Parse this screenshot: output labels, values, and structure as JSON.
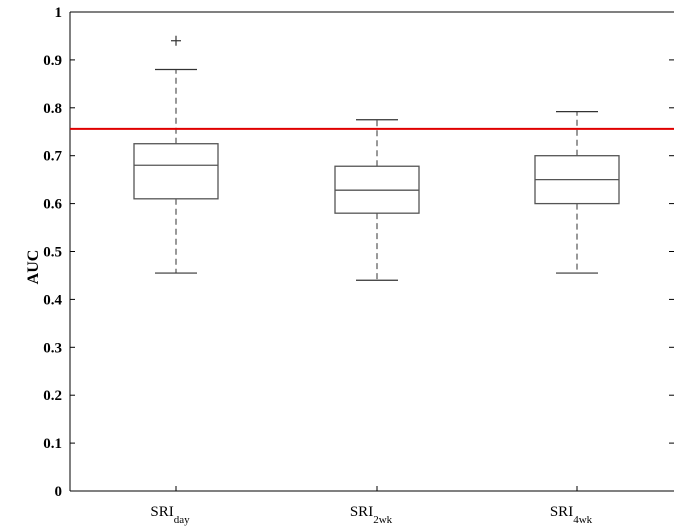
{
  "chart_data": {
    "type": "boxplot",
    "ylabel": "AUC",
    "ylim": [
      0,
      1
    ],
    "yticks": [
      "0",
      "0.1",
      "0.2",
      "0.3",
      "0.4",
      "0.5",
      "0.6",
      "0.7",
      "0.8",
      "0.9",
      "1"
    ],
    "categories": [
      {
        "base": "SRI",
        "sub": "day"
      },
      {
        "base": "SRI",
        "sub": "2wk"
      },
      {
        "base": "SRI",
        "sub": "4wk"
      }
    ],
    "boxes": [
      {
        "whisker_low": 0.455,
        "q1": 0.61,
        "median": 0.68,
        "q3": 0.725,
        "whisker_high": 0.88,
        "outliers": [
          0.94
        ]
      },
      {
        "whisker_low": 0.44,
        "q1": 0.58,
        "median": 0.628,
        "q3": 0.678,
        "whisker_high": 0.775,
        "outliers": []
      },
      {
        "whisker_low": 0.455,
        "q1": 0.6,
        "median": 0.65,
        "q3": 0.7,
        "whisker_high": 0.792,
        "outliers": []
      }
    ],
    "reference_line": {
      "y": 0.756,
      "color": "#e00000"
    },
    "colors": {
      "box": "#555555",
      "whisker": "#333333",
      "outlier": "#333333"
    }
  }
}
